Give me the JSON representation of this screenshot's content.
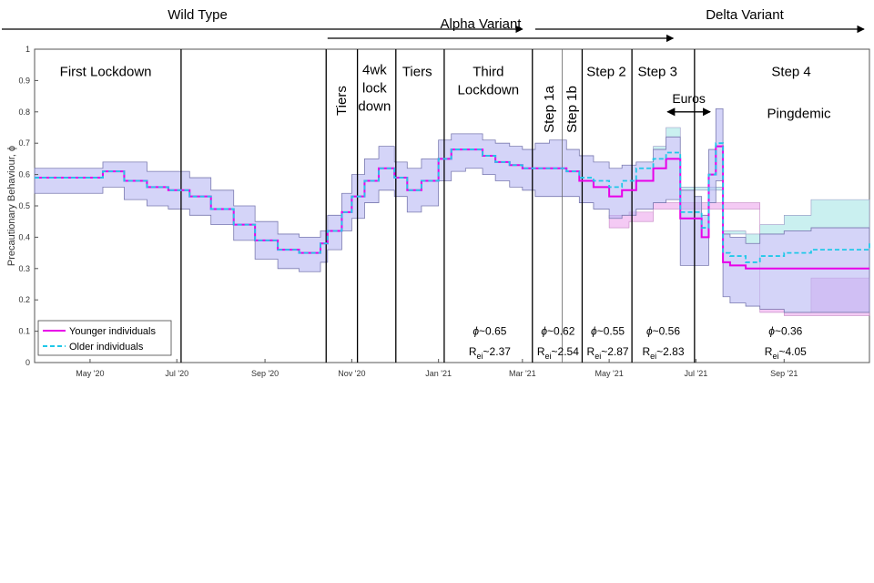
{
  "chart_data": {
    "type": "line",
    "ylabel": "Precautionary Behaviour, ϕ",
    "ylim": [
      0,
      1
    ],
    "yticks": [
      "0",
      "0.1",
      "0.2",
      "0.3",
      "0.4",
      "0.5",
      "0.6",
      "0.7",
      "0.8",
      "0.9",
      "1"
    ],
    "xlim": [
      "2020-03-23",
      "2021-10-31"
    ],
    "xticks": [
      {
        "date": "2020-05-01",
        "label": "May '20"
      },
      {
        "date": "2020-07-01",
        "label": "Jul '20"
      },
      {
        "date": "2020-09-01",
        "label": "Sep '20"
      },
      {
        "date": "2020-11-01",
        "label": "Nov '20"
      },
      {
        "date": "2021-01-01",
        "label": "Jan '21"
      },
      {
        "date": "2021-03-01",
        "label": "Mar '21"
      },
      {
        "date": "2021-05-01",
        "label": "May '21"
      },
      {
        "date": "2021-07-01",
        "label": "Jul '21"
      },
      {
        "date": "2021-09-01",
        "label": "Sep '21"
      }
    ],
    "variants": [
      {
        "label": "Wild Type",
        "start": "2020-03-23",
        "end": "2021-03-01"
      },
      {
        "label": "Alpha Variant",
        "start": "2020-10-15",
        "end": "2021-06-15"
      },
      {
        "label": "Delta Variant",
        "start": "2021-03-10",
        "end": "2021-10-31"
      }
    ],
    "phase_boundaries": [
      "2020-07-04",
      "2020-10-14",
      "2020-11-05",
      "2020-12-02",
      "2021-01-05",
      "2021-03-08",
      "2021-04-12",
      "2021-05-17",
      "2021-06-30"
    ],
    "thin_boundaries": [
      "2021-03-29"
    ],
    "phases": [
      {
        "lines": [
          "First Lockdown"
        ],
        "date": "2020-05-12",
        "y": 0.935
      },
      {
        "lines": [
          "Tiers"
        ],
        "date": "2020-10-24",
        "y": 0.86,
        "vertical": true
      },
      {
        "lines": [
          "4wk",
          "lock",
          "down"
        ],
        "date": "2020-11-17",
        "y": 0.94
      },
      {
        "lines": [
          "Tiers"
        ],
        "date": "2020-12-17",
        "y": 0.935
      },
      {
        "lines": [
          "Third",
          "Lockdown"
        ],
        "date": "2021-02-05",
        "y": 0.935
      },
      {
        "lines": [
          "Step 1a"
        ],
        "date": "2021-03-19",
        "y": 0.86,
        "vertical": true
      },
      {
        "lines": [
          "Step 1b"
        ],
        "date": "2021-04-04",
        "y": 0.86,
        "vertical": true
      },
      {
        "lines": [
          "Step 2"
        ],
        "date": "2021-04-29",
        "y": 0.935
      },
      {
        "lines": [
          "Step 3"
        ],
        "date": "2021-06-04",
        "y": 0.935
      },
      {
        "lines": [
          "Step 4"
        ],
        "date": "2021-09-06",
        "y": 0.935
      }
    ],
    "annotations": [
      {
        "phi": "0.65",
        "R": "2.37",
        "date": "2021-02-06"
      },
      {
        "phi": "0.62",
        "R": "2.54",
        "date": "2021-03-26"
      },
      {
        "phi": "0.55",
        "R": "2.87",
        "date": "2021-04-30"
      },
      {
        "phi": "0.56",
        "R": "2.83",
        "date": "2021-06-08"
      },
      {
        "phi": "0.36",
        "R": "4.05",
        "date": "2021-09-02"
      }
    ],
    "events": [
      {
        "label": "Euros",
        "start": "2021-06-11",
        "end": "2021-07-11",
        "y": 0.8
      },
      {
        "label": "Pingdemic",
        "date": "2021-08-20",
        "y": 0.78
      }
    ],
    "series": [
      {
        "name": "Younger individuals",
        "color": "#e800e8",
        "x": [
          "2020-03-23",
          "2020-05-10",
          "2020-05-25",
          "2020-06-10",
          "2020-06-25",
          "2020-07-10",
          "2020-07-25",
          "2020-08-10",
          "2020-08-25",
          "2020-09-10",
          "2020-09-25",
          "2020-10-10",
          "2020-10-15",
          "2020-10-25",
          "2020-11-01",
          "2020-11-10",
          "2020-11-20",
          "2020-12-01",
          "2020-12-10",
          "2020-12-20",
          "2021-01-01",
          "2021-01-10",
          "2021-01-20",
          "2021-02-01",
          "2021-02-10",
          "2021-02-20",
          "2021-03-01",
          "2021-03-10",
          "2021-03-20",
          "2021-04-01",
          "2021-04-10",
          "2021-04-20",
          "2021-05-01",
          "2021-05-10",
          "2021-05-20",
          "2021-06-01",
          "2021-06-10",
          "2021-06-20",
          "2021-06-30",
          "2021-07-05",
          "2021-07-10",
          "2021-07-15",
          "2021-07-20",
          "2021-07-25",
          "2021-08-05",
          "2021-08-15",
          "2021-09-01",
          "2021-09-20",
          "2021-10-31"
        ],
        "values": [
          0.59,
          0.61,
          0.58,
          0.56,
          0.55,
          0.53,
          0.49,
          0.44,
          0.39,
          0.36,
          0.35,
          0.38,
          0.42,
          0.48,
          0.53,
          0.58,
          0.62,
          0.59,
          0.55,
          0.58,
          0.65,
          0.68,
          0.68,
          0.66,
          0.64,
          0.63,
          0.62,
          0.62,
          0.62,
          0.61,
          0.58,
          0.56,
          0.53,
          0.55,
          0.58,
          0.62,
          0.65,
          0.46,
          0.46,
          0.4,
          0.6,
          0.69,
          0.32,
          0.31,
          0.3,
          0.3,
          0.3,
          0.3,
          0.3
        ]
      },
      {
        "name": "Older individuals",
        "color": "#20c8e8",
        "x": [
          "2020-03-23",
          "2020-05-10",
          "2020-05-25",
          "2020-06-10",
          "2020-06-25",
          "2020-07-10",
          "2020-07-25",
          "2020-08-10",
          "2020-08-25",
          "2020-09-10",
          "2020-09-25",
          "2020-10-10",
          "2020-10-15",
          "2020-10-25",
          "2020-11-01",
          "2020-11-10",
          "2020-11-20",
          "2020-12-01",
          "2020-12-10",
          "2020-12-20",
          "2021-01-01",
          "2021-01-10",
          "2021-01-20",
          "2021-02-01",
          "2021-02-10",
          "2021-02-20",
          "2021-03-01",
          "2021-03-10",
          "2021-03-20",
          "2021-04-01",
          "2021-04-10",
          "2021-04-20",
          "2021-05-01",
          "2021-05-10",
          "2021-05-20",
          "2021-06-01",
          "2021-06-10",
          "2021-06-20",
          "2021-06-30",
          "2021-07-05",
          "2021-07-10",
          "2021-07-15",
          "2021-07-20",
          "2021-07-25",
          "2021-08-05",
          "2021-08-15",
          "2021-09-01",
          "2021-09-20",
          "2021-10-31"
        ],
        "values": [
          0.59,
          0.61,
          0.58,
          0.56,
          0.55,
          0.53,
          0.49,
          0.44,
          0.39,
          0.36,
          0.35,
          0.38,
          0.42,
          0.48,
          0.53,
          0.58,
          0.62,
          0.59,
          0.55,
          0.58,
          0.65,
          0.68,
          0.68,
          0.66,
          0.64,
          0.63,
          0.62,
          0.62,
          0.62,
          0.61,
          0.59,
          0.58,
          0.56,
          0.58,
          0.62,
          0.65,
          0.67,
          0.48,
          0.48,
          0.43,
          0.6,
          0.7,
          0.35,
          0.34,
          0.32,
          0.34,
          0.35,
          0.36,
          0.38
        ]
      }
    ],
    "bands": [
      {
        "name": "Shared range",
        "color": "#b8b8f4",
        "x": [
          "2020-03-23",
          "2020-05-10",
          "2020-05-25",
          "2020-06-10",
          "2020-06-25",
          "2020-07-10",
          "2020-07-25",
          "2020-08-10",
          "2020-08-25",
          "2020-09-10",
          "2020-09-25",
          "2020-10-10",
          "2020-10-15",
          "2020-10-25",
          "2020-11-01",
          "2020-11-10",
          "2020-11-20",
          "2020-12-01",
          "2020-12-10",
          "2020-12-20",
          "2021-01-01",
          "2021-01-10",
          "2021-01-20",
          "2021-02-01",
          "2021-02-10",
          "2021-02-20",
          "2021-03-01",
          "2021-03-10",
          "2021-03-20",
          "2021-04-01",
          "2021-04-10",
          "2021-04-20",
          "2021-05-01",
          "2021-05-10",
          "2021-05-20",
          "2021-06-01",
          "2021-06-10",
          "2021-06-20",
          "2021-06-30",
          "2021-07-05",
          "2021-07-10",
          "2021-07-15",
          "2021-07-20",
          "2021-07-25",
          "2021-08-05",
          "2021-08-15",
          "2021-09-01",
          "2021-09-20",
          "2021-10-31"
        ],
        "upper": [
          0.62,
          0.64,
          0.64,
          0.61,
          0.61,
          0.59,
          0.55,
          0.5,
          0.45,
          0.41,
          0.4,
          0.42,
          0.47,
          0.54,
          0.6,
          0.65,
          0.69,
          0.64,
          0.62,
          0.65,
          0.71,
          0.73,
          0.73,
          0.71,
          0.7,
          0.69,
          0.68,
          0.7,
          0.71,
          0.68,
          0.66,
          0.64,
          0.62,
          0.63,
          0.64,
          0.68,
          0.72,
          0.55,
          0.53,
          0.47,
          0.68,
          0.81,
          0.41,
          0.4,
          0.38,
          0.41,
          0.42,
          0.43,
          0.43
        ],
        "lower": [
          0.54,
          0.56,
          0.52,
          0.5,
          0.49,
          0.47,
          0.44,
          0.39,
          0.33,
          0.3,
          0.29,
          0.32,
          0.36,
          0.42,
          0.46,
          0.51,
          0.55,
          0.53,
          0.48,
          0.5,
          0.58,
          0.61,
          0.62,
          0.6,
          0.58,
          0.56,
          0.55,
          0.53,
          0.53,
          0.53,
          0.51,
          0.49,
          0.46,
          0.47,
          0.49,
          0.51,
          0.52,
          0.31,
          0.31,
          0.31,
          0.51,
          0.58,
          0.21,
          0.19,
          0.18,
          0.17,
          0.16,
          0.16,
          0.16
        ]
      }
    ],
    "older_extra_band": {
      "color": "#c8f0f0",
      "x": [
        "2021-06-01",
        "2021-06-10",
        "2021-06-20",
        "2021-07-20",
        "2021-08-05",
        "2021-08-15",
        "2021-09-01",
        "2021-09-20",
        "2021-10-31"
      ],
      "upper": [
        0.69,
        0.75,
        0.56,
        0.42,
        0.41,
        0.44,
        0.47,
        0.52,
        0.52
      ],
      "lower": [
        0.68,
        0.72,
        0.55,
        0.41,
        0.38,
        0.41,
        0.42,
        0.43,
        0.43
      ]
    },
    "younger_extra_band": {
      "color": "#f4c8f4",
      "x": [
        "2021-05-01",
        "2021-05-15",
        "2021-06-01",
        "2021-08-15",
        "2021-09-01",
        "2021-09-20",
        "2021-10-31"
      ],
      "upper": [
        0.47,
        0.48,
        0.51,
        0.17,
        0.16,
        0.27,
        0.27
      ],
      "lower": [
        0.43,
        0.45,
        0.49,
        0.16,
        0.15,
        0.15,
        0.15
      ]
    },
    "legend": [
      "Younger individuals",
      "Older individuals"
    ]
  }
}
